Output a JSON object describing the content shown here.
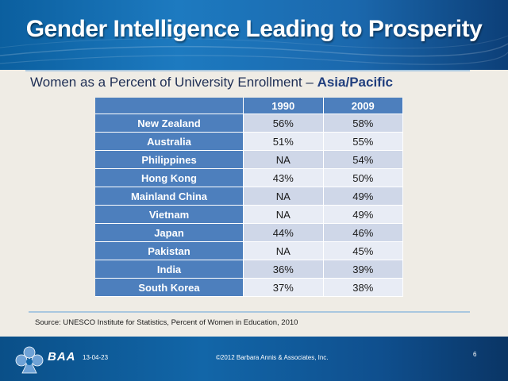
{
  "slide": {
    "title": "Gender Intelligence Leading to Prosperity",
    "subtitle_prefix": "Women as a Percent of University Enrollment – ",
    "subtitle_region": "Asia/Pacific"
  },
  "table": {
    "columns": [
      "",
      "1990",
      "2009"
    ],
    "rows": [
      {
        "country": "New Zealand",
        "y1990": "56%",
        "y2009": "58%"
      },
      {
        "country": "Australia",
        "y1990": "51%",
        "y2009": "55%"
      },
      {
        "country": "Philippines",
        "y1990": "NA",
        "y2009": "54%"
      },
      {
        "country": "Hong Kong",
        "y1990": "43%",
        "y2009": "50%"
      },
      {
        "country": "Mainland China",
        "y1990": "NA",
        "y2009": "49%"
      },
      {
        "country": "Vietnam",
        "y1990": "NA",
        "y2009": "49%"
      },
      {
        "country": "Japan",
        "y1990": "44%",
        "y2009": "46%"
      },
      {
        "country": "Pakistan",
        "y1990": "NA",
        "y2009": "45%"
      },
      {
        "country": "India",
        "y1990": "36%",
        "y2009": "39%"
      },
      {
        "country": "South Korea",
        "y1990": "37%",
        "y2009": "38%"
      }
    ]
  },
  "source": "Source: UNESCO Institute for Statistics, Percent of Women in Education, 2010",
  "footer": {
    "logo_text": "BAA",
    "date": "13-04-23",
    "copyright": "©2012 Barbara Annis & Associates, Inc.",
    "page_number": "6"
  },
  "colors": {
    "header_blue": "#1d7ac0",
    "table_header": "#4d7fbd",
    "row_dark": "#cfd7e8",
    "row_light": "#e8ecf5",
    "background": "#efece5"
  }
}
